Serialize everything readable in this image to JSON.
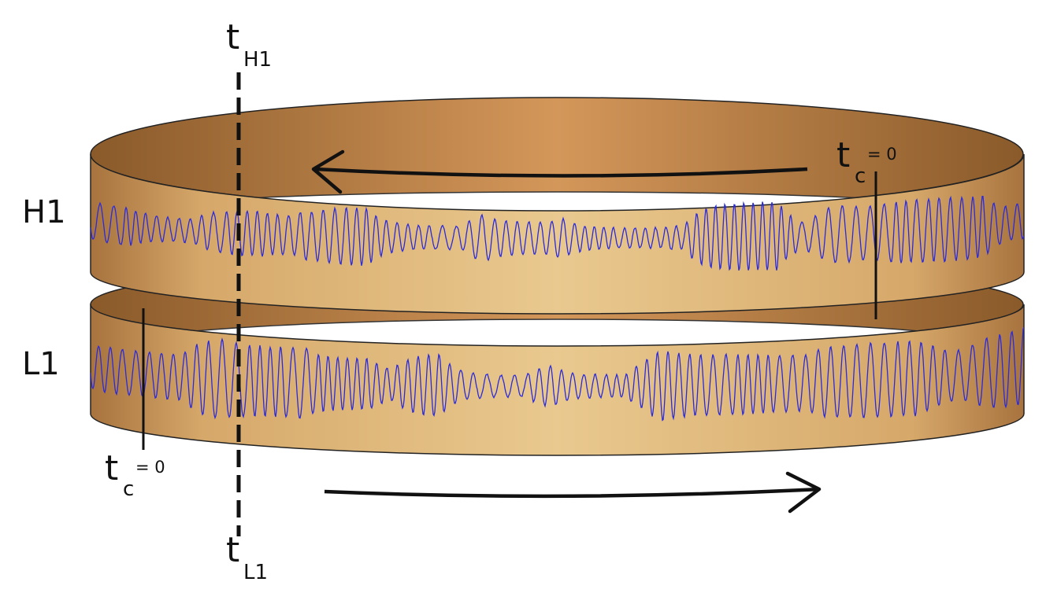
{
  "detectors": [
    {
      "name": "H1"
    },
    {
      "name": "L1"
    }
  ],
  "labels": {
    "t_h1_main": "t",
    "t_h1_sub": "H1",
    "t_l1_main": "t",
    "t_l1_sub": "L1",
    "tc_main": "t",
    "tc_sub": "c",
    "tc_eq": "= 0"
  },
  "colors": {
    "ring_edge": "#8a5a2a",
    "ring_mid": "#d4975a",
    "band_light": "#e8c68e",
    "band_dark": "#a87540",
    "waveform": "#2b2bd9",
    "ink": "#111111"
  }
}
